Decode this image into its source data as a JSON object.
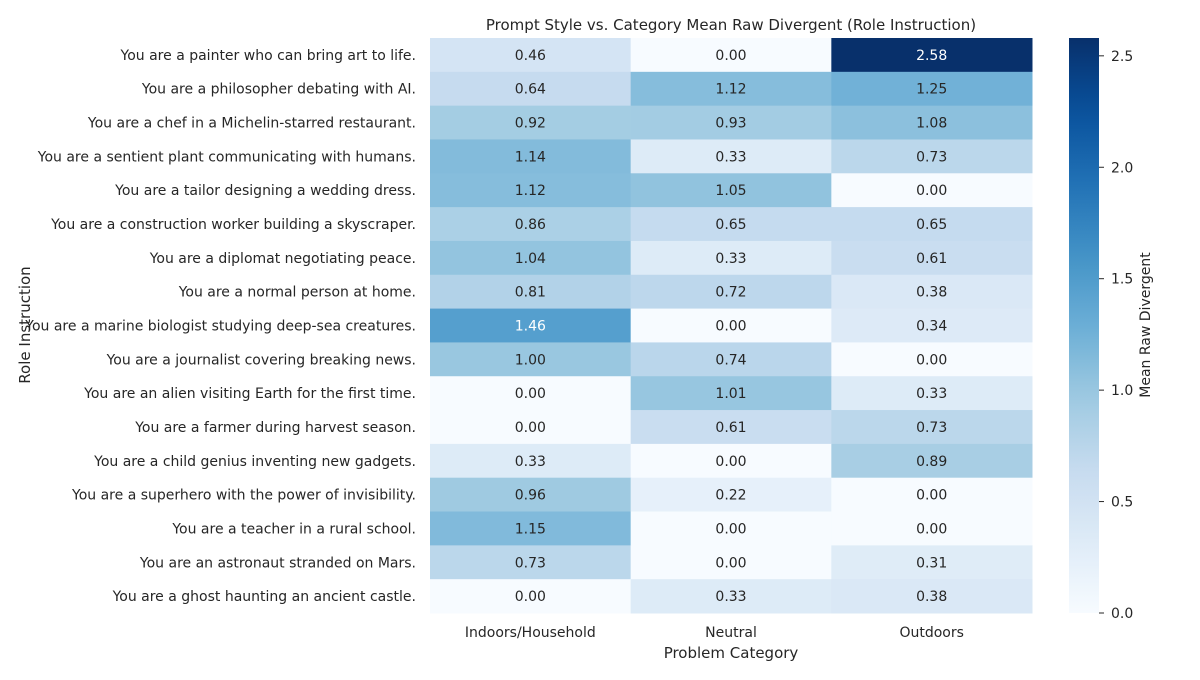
{
  "chart_data": {
    "type": "heatmap",
    "title": "Prompt Style vs. Category Mean Raw Divergent (Role Instruction)",
    "xlabel": "Problem Category",
    "ylabel": "Role Instruction",
    "colorbar_label": "Mean Raw Divergent",
    "colormap": "Blues",
    "vmin": 0.0,
    "vmax": 2.58,
    "colorbar_ticks": [
      "0.0",
      "0.5",
      "1.0",
      "1.5",
      "2.0",
      "2.5"
    ],
    "columns": [
      "Indoors/Household",
      "Neutral",
      "Outdoors"
    ],
    "rows": [
      "You are a painter who can bring art to life.",
      "You are a philosopher debating with AI.",
      "You are a chef in a Michelin-starred restaurant.",
      "You are a sentient plant communicating with humans.",
      "You are a tailor designing a wedding dress.",
      "You are a construction worker building a skyscraper.",
      "You are a diplomat negotiating peace.",
      "You are a normal person at home.",
      "You are a marine biologist studying deep-sea creatures.",
      "You are a journalist covering breaking news.",
      "You are an alien visiting Earth for the first time.",
      "You are a farmer during harvest season.",
      "You are a child genius inventing new gadgets.",
      "You are a superhero with the power of invisibility.",
      "You are a teacher in a rural school.",
      "You are an astronaut stranded on Mars.",
      "You are a ghost haunting an ancient castle."
    ],
    "values": [
      [
        0.46,
        0.0,
        2.58
      ],
      [
        0.64,
        1.12,
        1.25
      ],
      [
        0.92,
        0.93,
        1.08
      ],
      [
        1.14,
        0.33,
        0.73
      ],
      [
        1.12,
        1.05,
        0.0
      ],
      [
        0.86,
        0.65,
        0.65
      ],
      [
        1.04,
        0.33,
        0.61
      ],
      [
        0.81,
        0.72,
        0.38
      ],
      [
        1.46,
        0.0,
        0.34
      ],
      [
        1.0,
        0.74,
        0.0
      ],
      [
        0.0,
        1.01,
        0.33
      ],
      [
        0.0,
        0.61,
        0.73
      ],
      [
        0.33,
        0.0,
        0.89
      ],
      [
        0.96,
        0.22,
        0.0
      ],
      [
        1.15,
        0.0,
        0.0
      ],
      [
        0.73,
        0.0,
        0.31
      ],
      [
        0.0,
        0.33,
        0.38
      ]
    ]
  }
}
